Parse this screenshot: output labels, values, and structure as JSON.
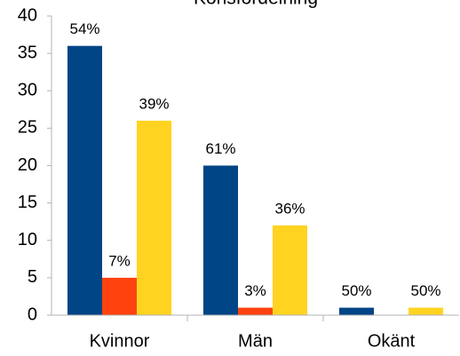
{
  "chart_data": {
    "type": "bar",
    "title": "Könsfördelning",
    "categories": [
      "Kvinnor",
      "Män",
      "Okänt"
    ],
    "series": [
      {
        "color": "#004586",
        "values": [
          36,
          20,
          1
        ],
        "value_labels": [
          "54%",
          "61%",
          "50%"
        ]
      },
      {
        "color": "#ff420e",
        "values": [
          5,
          1,
          0
        ],
        "value_labels": [
          "7%",
          "3%",
          null
        ]
      },
      {
        "color": "#ffd320",
        "values": [
          26,
          12,
          1
        ],
        "value_labels": [
          "39%",
          "36%",
          "50%"
        ]
      }
    ],
    "ylim": [
      0,
      40
    ],
    "yticks": [
      0,
      5,
      10,
      15,
      20,
      25,
      30,
      35,
      40
    ],
    "grid": false
  }
}
